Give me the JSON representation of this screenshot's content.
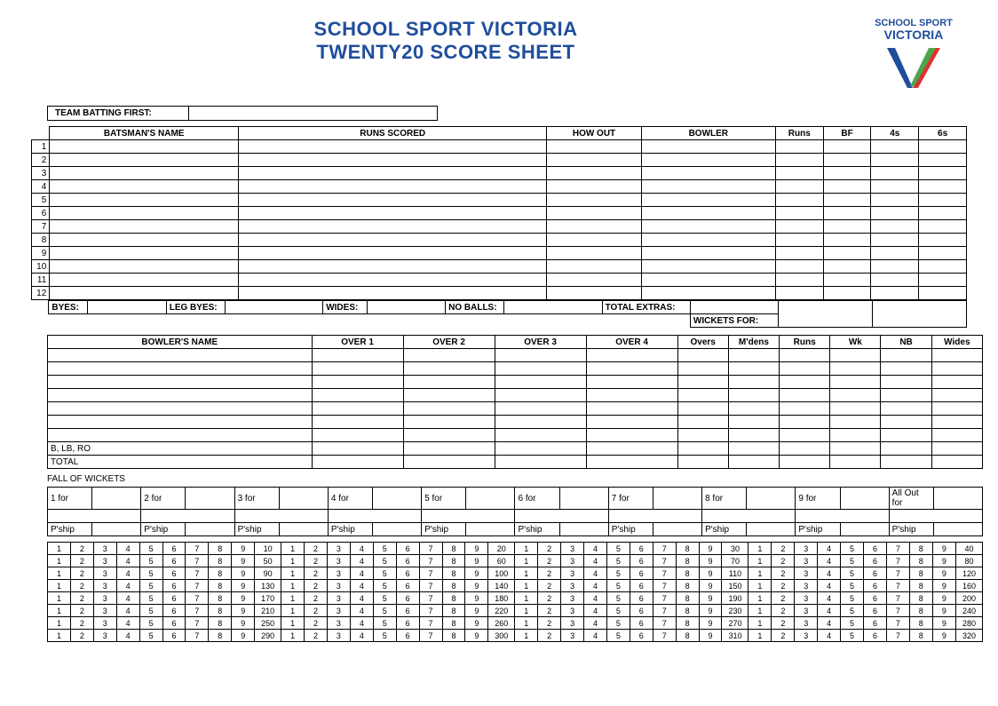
{
  "title1": "SCHOOL SPORT VICTORIA",
  "title2": "TWENTY20 SCORE SHEET",
  "logo_top": "SCHOOL SPORT",
  "logo_bottom": "VICTORIA",
  "team_batting_label": "TEAM BATTING FIRST:",
  "batting_headers": [
    "BATSMAN'S NAME",
    "RUNS SCORED",
    "HOW OUT",
    "BOWLER",
    "Runs",
    "BF",
    "4s",
    "6s"
  ],
  "batting_rows": [
    "1",
    "2",
    "3",
    "4",
    "5",
    "6",
    "7",
    "8",
    "9",
    "10",
    "11",
    "12"
  ],
  "extras": {
    "byes": "BYES:",
    "legbyes": "LEG BYES:",
    "wides": "WIDES:",
    "noballs": "NO BALLS:",
    "total": "TOTAL EXTRAS:",
    "wickets_for": "WICKETS FOR:"
  },
  "bowling_headers": [
    "BOWLER'S NAME",
    "OVER 1",
    "OVER 2",
    "OVER 3",
    "OVER 4",
    "Overs",
    "M'dens",
    "Runs",
    "Wk",
    "NB",
    "Wides"
  ],
  "bowling_footer": [
    "B, LB, RO",
    "TOTAL"
  ],
  "fow_label": "FALL OF WICKETS",
  "fow_cells": [
    "1 for",
    "2 for",
    "3 for",
    "4 for",
    "5 for",
    "6 for",
    "7 for",
    "8 for",
    "9 for",
    "All Out for"
  ],
  "pship": "P'ship",
  "tally_tens": [
    10,
    50,
    90,
    130,
    170,
    210,
    250,
    290
  ],
  "tally_twenties": [
    20,
    60,
    100,
    140,
    180,
    220,
    260,
    300
  ],
  "tally_thirties": [
    30,
    70,
    110,
    150,
    190,
    230,
    270,
    310
  ],
  "tally_forties": [
    40,
    80,
    120,
    160,
    200,
    240,
    280,
    320
  ],
  "colors": {
    "title": "#1f4e9c",
    "border": "#000000",
    "bg": "#ffffff"
  }
}
